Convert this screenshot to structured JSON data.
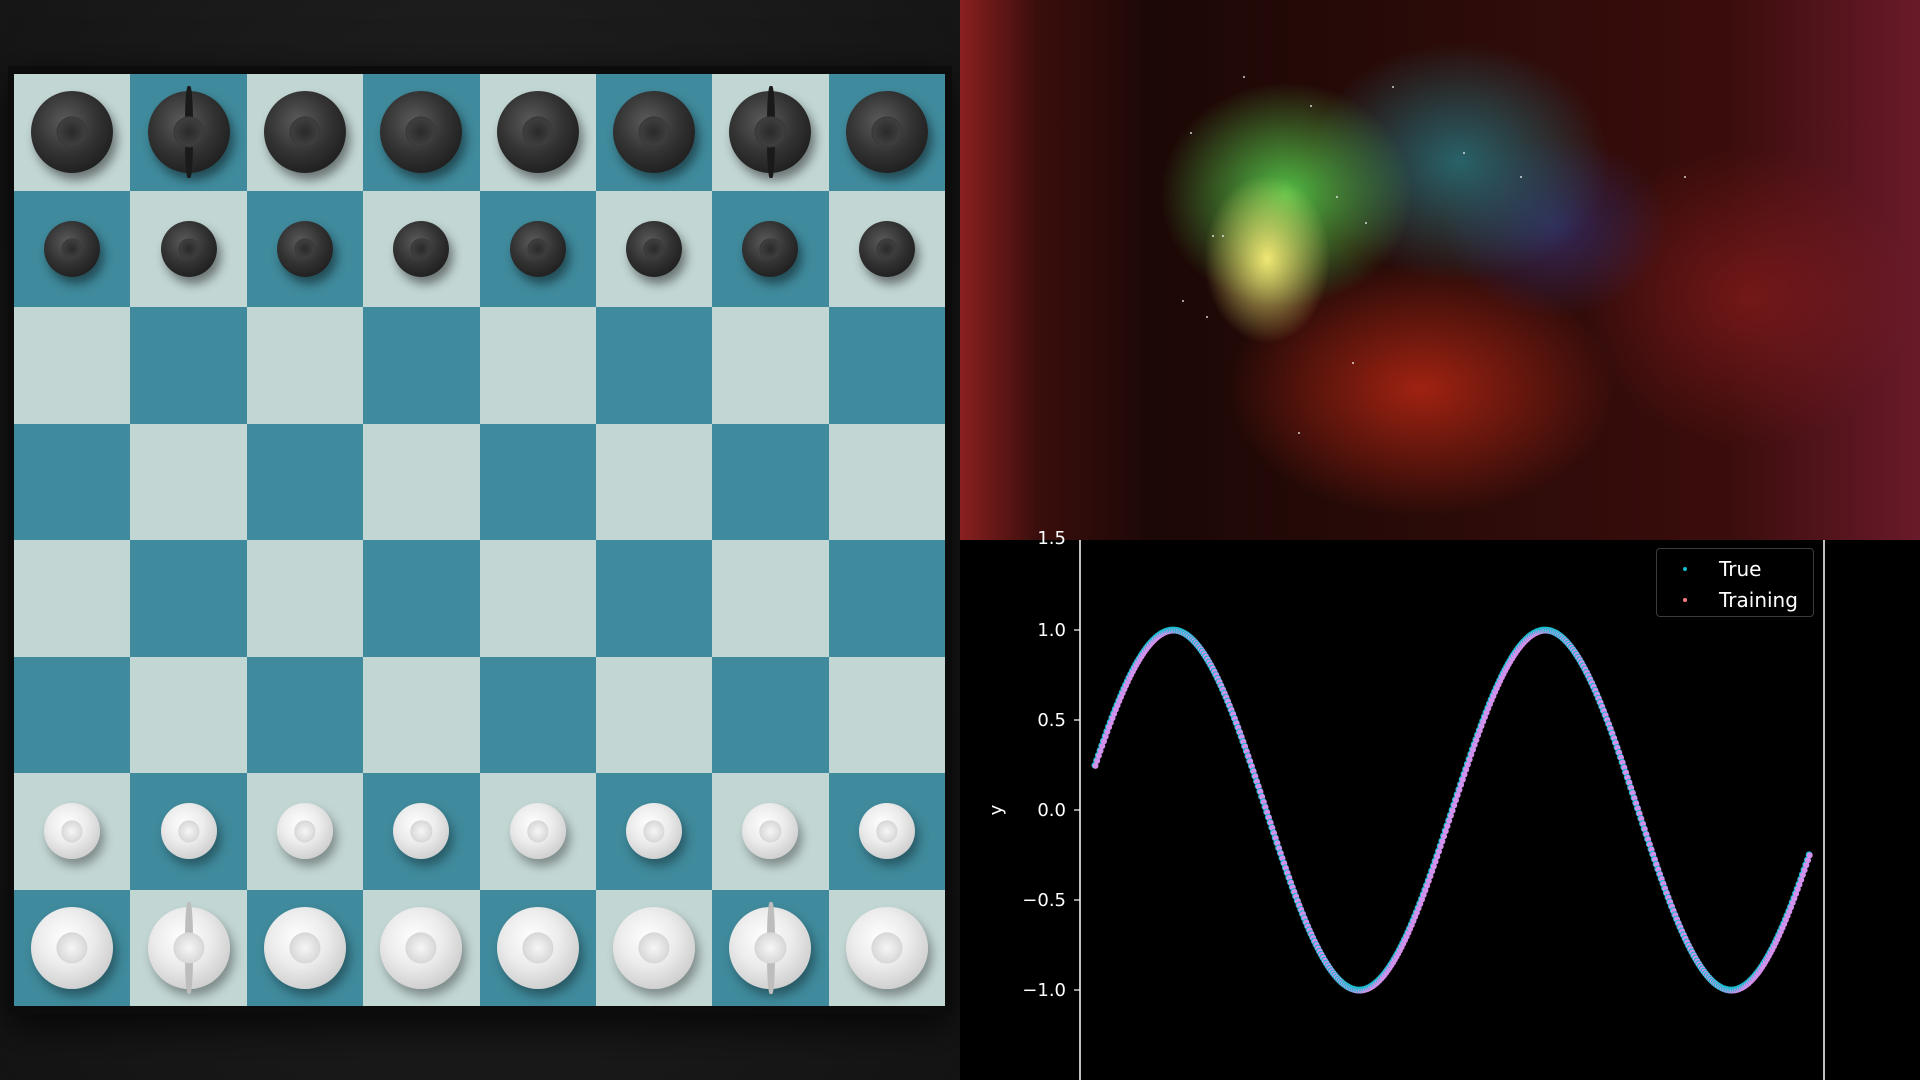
{
  "chess": {
    "board_colors": {
      "light": "#c2d6d4",
      "dark": "#3f8a9c"
    },
    "rows": [
      [
        "black-rook",
        "black-knight",
        "black-bishop",
        "black-queen",
        "black-king",
        "black-bishop",
        "black-knight",
        "black-rook"
      ],
      [
        "black-pawn",
        "black-pawn",
        "black-pawn",
        "black-pawn",
        "black-pawn",
        "black-pawn",
        "black-pawn",
        "black-pawn"
      ],
      [
        "",
        "",
        "",
        "",
        "",
        "",
        "",
        ""
      ],
      [
        "",
        "",
        "",
        "",
        "",
        "",
        "",
        ""
      ],
      [
        "",
        "",
        "",
        "",
        "",
        "",
        "",
        ""
      ],
      [
        "",
        "",
        "",
        "",
        "",
        "",
        "",
        ""
      ],
      [
        "white-pawn",
        "white-pawn",
        "white-pawn",
        "white-pawn",
        "white-pawn",
        "white-pawn",
        "white-pawn",
        "white-pawn"
      ],
      [
        "white-rook",
        "white-knight",
        "white-bishop",
        "white-queen",
        "white-king",
        "white-bishop",
        "white-knight",
        "white-rook"
      ]
    ]
  },
  "nebula": {
    "colors": {
      "core": "#f4ec7a",
      "green": "#5adc50",
      "red": "#be2814",
      "blue": "#323c96"
    }
  },
  "chart_data": {
    "type": "scatter",
    "function": "sine",
    "xlim": [
      0,
      3
    ],
    "ylim": [
      -1.5,
      1.5
    ],
    "ylabel": "y",
    "xlabel": "",
    "yticks": [
      "1.0",
      "0.5",
      "0.0",
      "−0.5",
      "−1.0"
    ],
    "ytick_values": [
      1.0,
      0.5,
      0.0,
      -0.5,
      -1.0
    ],
    "top_tick_label": "1.5",
    "grid": false,
    "legend_placement": "top-right",
    "series": [
      {
        "name": "True",
        "color": "#17becf"
      },
      {
        "name": "Training",
        "color": "#ff7f7f"
      }
    ],
    "blend_color": "#e88cf0",
    "x_start": 0.06,
    "x_end": 2.94,
    "y_start": 0.17,
    "y_end": -0.18,
    "peaks": [
      {
        "x": 0.25,
        "y": 1.0
      },
      {
        "x": 1.75,
        "y": 1.0
      }
    ],
    "troughs": [
      {
        "x": 1.0,
        "y": -1.0
      },
      {
        "x": 2.5,
        "y": -1.0
      }
    ]
  }
}
